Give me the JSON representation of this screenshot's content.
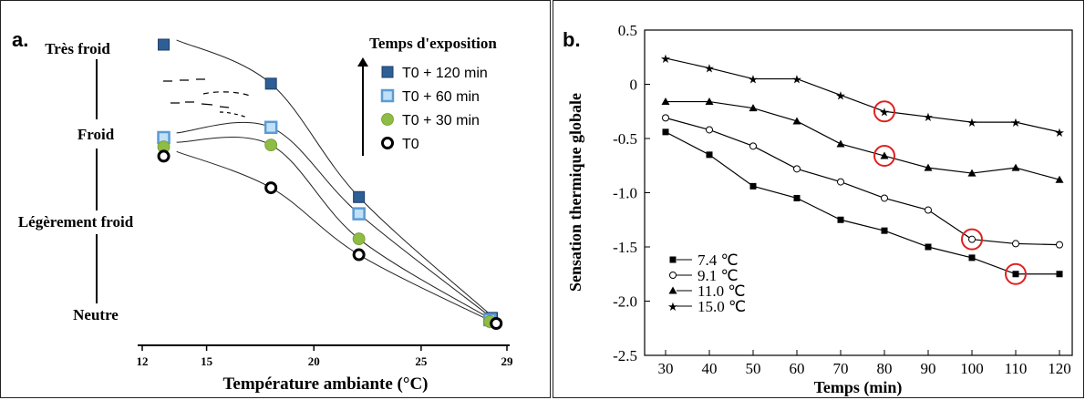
{
  "chart_data": [
    {
      "panel_label": "a.",
      "type": "line",
      "xlabel": "Température ambiante (°C)",
      "xticks": [
        "12",
        "15",
        "20",
        "25",
        "29"
      ],
      "xlim": [
        12,
        29
      ],
      "ylevels": [
        "Très froid",
        "Froid",
        "Légèrement froid",
        "Neutre"
      ],
      "legend_title": "Temps d'exposition",
      "legend_placement": "top-right",
      "series": [
        {
          "name": "T0 + 120 min",
          "marker": "filled-square",
          "color": "#2e5e96",
          "x": [
            13,
            18,
            22.1,
            28.3
          ],
          "y": [
            3.0,
            2.58,
            1.36,
            0.06
          ]
        },
        {
          "name": "T0 + 60 min",
          "marker": "light-square",
          "color": "#5b9bd5",
          "x": [
            13,
            18,
            22.1,
            28.2
          ],
          "y": [
            2.0,
            2.11,
            1.18,
            0.04
          ]
        },
        {
          "name": "T0 + 30 min",
          "marker": "green-circle",
          "color": "#8fbc45",
          "x": [
            13,
            18,
            22.1,
            28.2
          ],
          "y": [
            1.9,
            1.92,
            0.91,
            0.02
          ]
        },
        {
          "name": "T0",
          "marker": "open-circle",
          "color": "#000000",
          "x": [
            13,
            18,
            22.1,
            28.5
          ],
          "y": [
            1.8,
            1.46,
            0.74,
            0.0
          ]
        }
      ]
    },
    {
      "panel_label": "b.",
      "type": "line",
      "xlabel": "Temps (min)",
      "ylabel": "Sensation thermique globale",
      "x": [
        30,
        40,
        50,
        60,
        70,
        80,
        90,
        100,
        110,
        120
      ],
      "xticks": [
        "30",
        "40",
        "50",
        "60",
        "70",
        "80",
        "90",
        "100",
        "110",
        "120"
      ],
      "yticks": [
        "0.5",
        "0",
        "-0.5",
        "-1.0",
        "-1.5",
        "-2.0",
        "-2.5"
      ],
      "ylim": [
        -2.5,
        0.5
      ],
      "legend_placement": "bottom-left",
      "series": [
        {
          "name": "7.4 ℃",
          "marker": "square",
          "values": [
            -0.44,
            -0.65,
            -0.94,
            -1.05,
            -1.25,
            -1.35,
            -1.5,
            -1.6,
            -1.75,
            -1.75
          ]
        },
        {
          "name": "9.1 ℃",
          "marker": "open-circle",
          "values": [
            -0.31,
            -0.42,
            -0.57,
            -0.78,
            -0.9,
            -1.05,
            -1.16,
            -1.43,
            -1.47,
            -1.48
          ]
        },
        {
          "name": "11.0 ℃",
          "marker": "triangle",
          "values": [
            -0.16,
            -0.16,
            -0.22,
            -0.34,
            -0.55,
            -0.66,
            -0.77,
            -0.82,
            -0.77,
            -0.88
          ]
        },
        {
          "name": "15.0 ℃",
          "marker": "star",
          "values": [
            0.24,
            0.15,
            0.05,
            0.05,
            -0.1,
            -0.25,
            -0.3,
            -0.35,
            -0.35,
            -0.44
          ]
        }
      ],
      "highlights": [
        {
          "series": "15.0 ℃",
          "x": 80,
          "y": -0.25
        },
        {
          "series": "11.0 ℃",
          "x": 80,
          "y": -0.66
        },
        {
          "series": "9.1 ℃",
          "x": 100,
          "y": -1.43
        },
        {
          "series": "7.4 ℃",
          "x": 110,
          "y": -1.75
        }
      ],
      "highlight_color": "#e02020"
    }
  ]
}
